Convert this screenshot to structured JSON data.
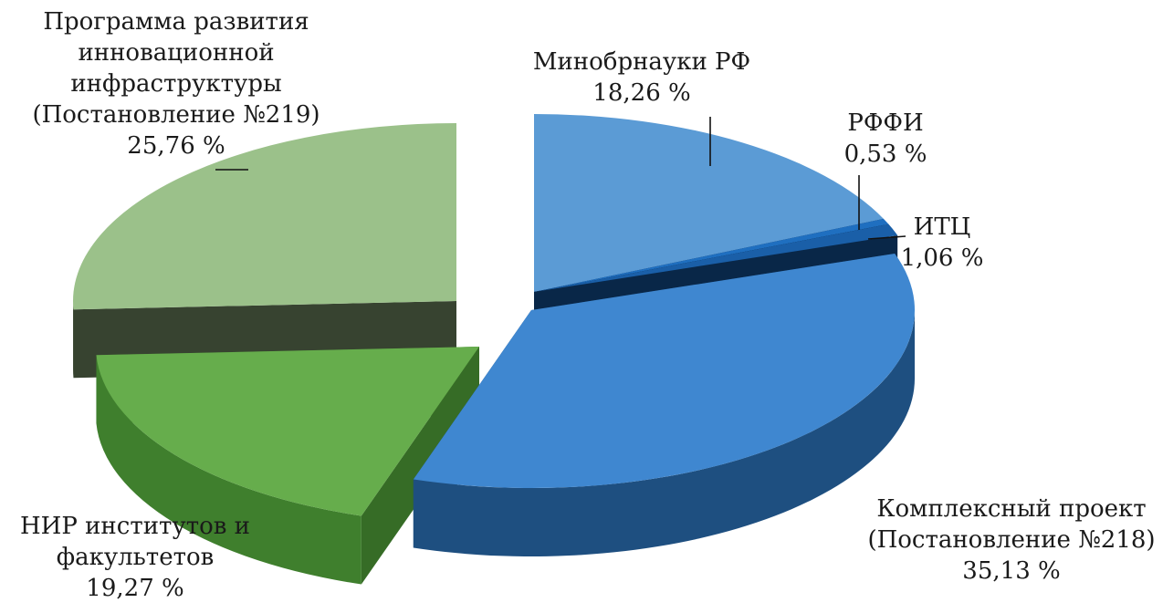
{
  "chart_data": {
    "type": "pie",
    "title": "",
    "slices": [
      {
        "label_lines": [
          "Минобрнауки РФ"
        ],
        "value_text": "18,26 %",
        "value": 18.26,
        "top": "#5b9bd5",
        "side": "#2a4a6a"
      },
      {
        "label_lines": [
          "РФФИ"
        ],
        "value_text": "0,53 %",
        "value": 0.53,
        "top": "#1f6fc0",
        "side": "#123a66"
      },
      {
        "label_lines": [
          "ИТЦ"
        ],
        "value_text": "1,06 %",
        "value": 1.06,
        "top": "#1a5fa8",
        "side": "#0b2e55"
      },
      {
        "label_lines": [
          "Комплексный проект",
          "(Постановление №218)"
        ],
        "value_text": "35,13 %",
        "value": 35.13,
        "top": "#3f87d0",
        "side": "#1e4f80"
      },
      {
        "label_lines": [
          "НИР институтов и",
          "факультетов"
        ],
        "value_text": "19,27 %",
        "value": 19.27,
        "top": "#66ad4c",
        "side": "#3f7f2d"
      },
      {
        "label_lines": [
          "Программа развития",
          "инновационной",
          "инфраструктуры",
          "(Постановление №219)"
        ],
        "value_text": "25,76 %",
        "value": 25.76,
        "top": "#9bc18a",
        "side": "#414f38"
      }
    ]
  }
}
